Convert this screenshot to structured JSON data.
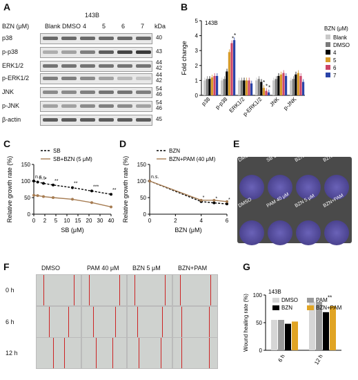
{
  "panels": {
    "A": "A",
    "B": "B",
    "C": "C",
    "D": "D",
    "E": "E",
    "F": "F",
    "G": "G"
  },
  "panel_a": {
    "cell_line": "143B",
    "bzn_label": "BZN (μM)",
    "columns": [
      "Blank",
      "DMSO",
      "4",
      "5",
      "6",
      "7"
    ],
    "kda_label": "kDa",
    "rows": [
      {
        "name": "p38",
        "kda": "40"
      },
      {
        "name": "p-p38",
        "kda": "43"
      },
      {
        "name": "ERK1/2",
        "kda": "44\n42"
      },
      {
        "name": "p-ERK1/2",
        "kda": "44\n42"
      },
      {
        "name": "JNK",
        "kda": "54\n46"
      },
      {
        "name": "p-JNK",
        "kda": "54\n46"
      },
      {
        "name": "β-actin",
        "kda": "45"
      }
    ]
  },
  "panel_e": {
    "row1": [
      "DMSO",
      "SB 2 μM",
      "BZN 5 μM",
      "BZN+SB"
    ],
    "row2": [
      "DMSO",
      "PAM 40 μM",
      "BZN 5 μM",
      "BZN+PAM"
    ]
  },
  "panel_f": {
    "columns": [
      "DMSO",
      "PAM 40 μM",
      "BZN 5 μM",
      "BZN+PAM"
    ],
    "rows": [
      "0 h",
      "6 h",
      "12 h"
    ]
  },
  "chart_data": [
    {
      "panel": "B",
      "type": "bar",
      "title": "143B",
      "ylabel": "Fold change",
      "ylim": [
        0,
        5
      ],
      "legend_title": "BZN (μM)",
      "categories": [
        "p38",
        "p-p38",
        "ERK1/2",
        "p-ERK1/2",
        "JNK",
        "p-JNK"
      ],
      "series": [
        {
          "name": "Blank",
          "color": "#c9c9c9",
          "values": [
            1.0,
            1.0,
            1.0,
            1.0,
            1.0,
            1.0
          ]
        },
        {
          "name": "DMSO",
          "color": "#7a7a7a",
          "values": [
            1.1,
            1.1,
            1.0,
            1.1,
            1.1,
            1.1
          ]
        },
        {
          "name": "4",
          "color": "#000000",
          "values": [
            1.1,
            1.6,
            1.0,
            0.9,
            1.3,
            1.4
          ]
        },
        {
          "name": "5",
          "color": "#d89b2a",
          "values": [
            1.2,
            2.9,
            1.0,
            0.5,
            1.4,
            1.5
          ]
        },
        {
          "name": "6",
          "color": "#cc4466",
          "values": [
            1.3,
            3.5,
            1.0,
            0.3,
            1.5,
            1.3
          ]
        },
        {
          "name": "7",
          "color": "#2a44a8",
          "values": [
            1.3,
            3.7,
            0.8,
            0.2,
            1.3,
            0.9
          ]
        }
      ],
      "annotations": [
        "*",
        "*",
        "*",
        "*",
        "*"
      ]
    },
    {
      "panel": "C",
      "type": "line",
      "xlabel": "SB (μM)",
      "ylabel": "Relative growth rate (%)",
      "x": [
        0,
        2,
        5,
        10,
        20,
        30,
        40
      ],
      "xticks": [
        "0",
        "2",
        "5",
        "10",
        "15",
        "20",
        "30",
        "40"
      ],
      "ylim": [
        0,
        150
      ],
      "yticks": [
        "0",
        "50",
        "100",
        "150"
      ],
      "series": [
        {
          "name": "SB",
          "color": "#000000",
          "dashed": true,
          "values": [
            100,
            97,
            93,
            88,
            80,
            70,
            60
          ]
        },
        {
          "name": "SB+BZN (5 μM)",
          "color": "#a67c52",
          "dashed": false,
          "values": [
            57,
            56,
            53,
            50,
            45,
            35,
            22
          ]
        }
      ],
      "annotations": [
        "n.s",
        "n.s",
        "*",
        "**",
        "**",
        "***",
        "**"
      ]
    },
    {
      "panel": "D",
      "type": "line",
      "xlabel": "BZN (μM)",
      "ylabel": "Relative growth rate (%)",
      "x": [
        0,
        4,
        5,
        6
      ],
      "xticks": [
        "0",
        "2",
        "4",
        "6"
      ],
      "ylim": [
        0,
        150
      ],
      "yticks": [
        "0",
        "50",
        "100",
        "150"
      ],
      "series": [
        {
          "name": "BZN",
          "color": "#000000",
          "dashed": true,
          "values": [
            100,
            38,
            34,
            31
          ]
        },
        {
          "name": "BZN+PAM (40 μM)",
          "color": "#a67c52",
          "dashed": false,
          "values": [
            100,
            42,
            42,
            38
          ]
        }
      ],
      "annotations": [
        "n.s.",
        "*",
        "*",
        "*"
      ]
    },
    {
      "panel": "G",
      "type": "bar",
      "title": "143B",
      "ylabel": "Wound healing rate (%)",
      "ylim": [
        0,
        100
      ],
      "yticks": [
        "0",
        "50",
        "100"
      ],
      "categories": [
        "6 h",
        "12 h"
      ],
      "series": [
        {
          "name": "DMSO",
          "color": "#d6d6d6",
          "values": [
            55,
            88
          ]
        },
        {
          "name": "PAM",
          "color": "#9a9a9a",
          "values": [
            55,
            88
          ]
        },
        {
          "name": "BZN",
          "color": "#000000",
          "values": [
            48,
            69
          ]
        },
        {
          "name": "BZN+PAM",
          "color": "#e0a424",
          "values": [
            52,
            80
          ]
        }
      ],
      "annotations": [
        "**"
      ]
    }
  ]
}
